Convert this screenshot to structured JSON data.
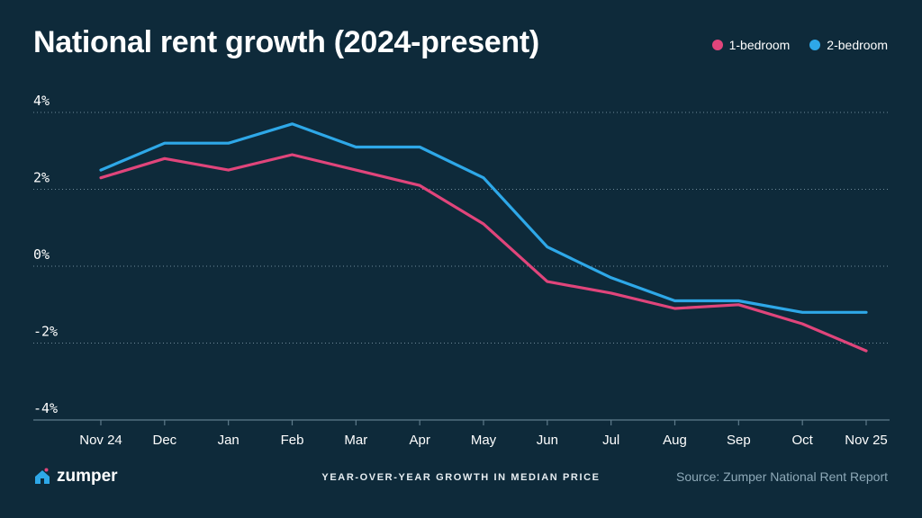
{
  "header": {
    "title": "National rent growth (2024-present)"
  },
  "legend": [
    {
      "label": "1-bedroom",
      "color": "#e0457b"
    },
    {
      "label": "2-bedroom",
      "color": "#2ea8e8"
    }
  ],
  "footer": {
    "brand": "zumper",
    "caption": "YEAR-OVER-YEAR GROWTH IN MEDIAN PRICE",
    "source": "Source: Zumper National Rent Report"
  },
  "chart_data": {
    "type": "line",
    "title": "National rent growth (2024-present)",
    "xlabel": "YEAR-OVER-YEAR GROWTH IN MEDIAN PRICE",
    "ylabel": "",
    "categories": [
      "Nov 24",
      "Dec",
      "Jan",
      "Feb",
      "Mar",
      "Apr",
      "May",
      "Jun",
      "Jul",
      "Aug",
      "Sep",
      "Oct",
      "Nov 25"
    ],
    "ylim": [
      -4,
      4
    ],
    "yticks": [
      4,
      2,
      0,
      -2,
      -4
    ],
    "ytick_labels": [
      "4%",
      "2%",
      "0%",
      "-2%",
      "-4%"
    ],
    "grid": "horizontal dotted",
    "legend_position": "top-right",
    "series": [
      {
        "name": "1-bedroom",
        "color": "#e0457b",
        "values": [
          2.3,
          2.8,
          2.5,
          2.9,
          2.5,
          2.1,
          1.1,
          -0.4,
          -0.7,
          -1.1,
          -1.0,
          -1.5,
          -2.2
        ]
      },
      {
        "name": "2-bedroom",
        "color": "#2ea8e8",
        "values": [
          2.5,
          3.2,
          3.2,
          3.7,
          3.1,
          3.1,
          2.3,
          0.5,
          -0.3,
          -0.9,
          -0.9,
          -1.2,
          -1.2
        ]
      }
    ]
  }
}
